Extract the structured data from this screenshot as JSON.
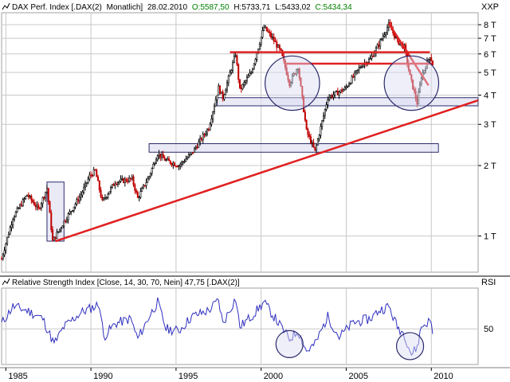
{
  "colors": {
    "background": "#ffffff",
    "grid": "#c8c8c8",
    "candle_up": "#000000",
    "candle_down": "#c00000",
    "trendline": "#e02020",
    "zone_fill": "#dcdcf2",
    "zone_stroke": "#2a2a6a",
    "rsi_line": "#3030c0",
    "header_green": "#008000",
    "header_text": "#000000"
  },
  "price_panel": {
    "header": {
      "instrument": "DAX Perf. Index [.DAX(2)",
      "interval": "Monatlich]",
      "date": "28.02.2010",
      "open": "O:5587,50",
      "high": "H:5733,71",
      "low": "L:5433,02",
      "close": "C:5434,34"
    },
    "axis_label": "XXP",
    "scale": "log",
    "y_ticks": [
      {
        "value": 1000,
        "label": "1 T"
      },
      {
        "value": 2000,
        "label": "2 T"
      },
      {
        "value": 3000,
        "label": "3 T"
      },
      {
        "value": 4000,
        "label": "4 T"
      },
      {
        "value": 5000,
        "label": "5 T"
      },
      {
        "value": 6000,
        "label": "6 T"
      },
      {
        "value": 7000,
        "label": "7 T"
      },
      {
        "value": 8000,
        "label": "8 T"
      }
    ]
  },
  "rsi_panel": {
    "header": "Relative Strength Index [Close, 14, 30, 70, Nein] 47,75 [.DAX(2)]",
    "axis_label": "RSI",
    "y_ticks": [
      {
        "value": 50,
        "label": "50"
      }
    ]
  },
  "x_ticks": [
    "1985",
    "1990",
    "1995",
    "2000",
    "2005",
    "2010"
  ],
  "chart_data": {
    "type": "line",
    "title": "DAX Perf. Index [.DAX(2) Monatlich]",
    "scale": "log",
    "x_range": [
      "1984-10",
      "2012-10"
    ],
    "ylim": [
      700,
      9000
    ],
    "series": [
      {
        "name": "DAX Perf. Index",
        "x": [
          "1984-10",
          "1985-06",
          "1986-04",
          "1986-12",
          "1987-06",
          "1987-10",
          "1988-06",
          "1989-06",
          "1989-12",
          "1990-04",
          "1990-09",
          "1991-06",
          "1992-06",
          "1992-10",
          "1993-06",
          "1993-12",
          "1994-06",
          "1995-03",
          "1995-12",
          "1996-12",
          "1997-07",
          "1997-10",
          "1998-07",
          "1998-10",
          "1999-06",
          "2000-03",
          "2000-09",
          "2001-03",
          "2001-09",
          "2002-03",
          "2002-09",
          "2003-03",
          "2003-12",
          "2004-12",
          "2005-12",
          "2006-06",
          "2006-12",
          "2007-07",
          "2008-01",
          "2008-06",
          "2008-10",
          "2009-03",
          "2009-06",
          "2009-12",
          "2010-02"
        ],
        "values": [
          800,
          1200,
          1500,
          1300,
          1600,
          950,
          1150,
          1500,
          1800,
          1900,
          1400,
          1700,
          1750,
          1450,
          1800,
          2250,
          2100,
          2000,
          2250,
          2900,
          4300,
          3900,
          6000,
          4200,
          5000,
          7800,
          7000,
          6100,
          4500,
          5300,
          2800,
          2300,
          3900,
          4250,
          5400,
          5700,
          6600,
          8000,
          6800,
          6400,
          4800,
          3700,
          4800,
          5900,
          5434
        ]
      }
    ],
    "rsi": {
      "name": "Relative Strength Index [Close, 14, 30, 70, Nein]",
      "last_value": 47.75,
      "ylim": [
        15,
        90
      ],
      "x": [
        "1984-10",
        "1985-06",
        "1986-04",
        "1987-03",
        "1987-11",
        "1988-06",
        "1989-06",
        "1990-07",
        "1990-10",
        "1991-06",
        "1992-05",
        "1992-10",
        "1993-06",
        "1993-12",
        "1994-06",
        "1995-03",
        "1995-12",
        "1996-12",
        "1997-07",
        "1997-10",
        "1998-07",
        "1998-10",
        "1999-06",
        "2000-03",
        "2000-12",
        "2001-09",
        "2002-03",
        "2002-09",
        "2003-03",
        "2003-12",
        "2004-08",
        "2005-06",
        "2006-06",
        "2006-12",
        "2007-07",
        "2008-01",
        "2008-06",
        "2008-11",
        "2009-03",
        "2009-06",
        "2009-12",
        "2010-02"
      ],
      "values": [
        55,
        72,
        68,
        60,
        35,
        52,
        66,
        74,
        42,
        55,
        60,
        40,
        62,
        76,
        50,
        48,
        62,
        68,
        78,
        55,
        80,
        52,
        62,
        76,
        58,
        40,
        48,
        28,
        35,
        62,
        42,
        56,
        60,
        68,
        72,
        52,
        45,
        25,
        32,
        52,
        58,
        48
      ]
    },
    "annotations": {
      "trendlines": [
        {
          "from": [
            "1987-12",
            950
          ],
          "to": [
            "2012-10",
            3800
          ]
        },
        {
          "from": [
            "1998-03",
            6100
          ],
          "to": [
            "2009-12",
            6100
          ]
        },
        {
          "from": [
            "2001-06",
            5450
          ],
          "to": [
            "2010-02",
            5450
          ]
        },
        {
          "from": [
            "2007-07",
            8100
          ],
          "to": [
            "2009-11",
            4400
          ]
        }
      ],
      "zones": [
        {
          "x": [
            "1987-06",
            "1988-06"
          ],
          "y": [
            950,
            1700
          ]
        },
        {
          "x": [
            "1993-06",
            "2010-06"
          ],
          "y": [
            2280,
            2480
          ]
        },
        {
          "x": [
            "1997-06",
            "2012-10"
          ],
          "y": [
            3600,
            3900
          ]
        }
      ],
      "price_circles": [
        {
          "center": [
            "2001-11",
            4500
          ],
          "radius_years": 1.6
        },
        {
          "center": [
            "2008-11",
            4500
          ],
          "radius_years": 1.6
        }
      ],
      "rsi_circles": [
        {
          "center": [
            "2001-09",
            35
          ]
        },
        {
          "center": [
            "2008-10",
            33
          ]
        }
      ]
    }
  }
}
